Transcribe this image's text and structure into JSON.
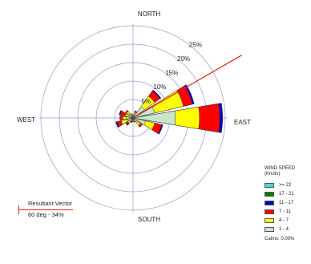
{
  "chart_data": {
    "type": "wind-rose",
    "directions": [
      "N",
      "NNE",
      "NE",
      "ENE",
      "E",
      "ESE",
      "SE",
      "SSE",
      "S",
      "SSW",
      "SW",
      "WSW",
      "W",
      "WNW",
      "NW",
      "NNW"
    ],
    "direction_degrees": [
      0,
      22.5,
      45,
      67.5,
      90,
      112.5,
      135,
      157.5,
      180,
      202.5,
      225,
      247.5,
      270,
      292.5,
      315,
      337.5
    ],
    "compass_labels": {
      "north": "NORTH",
      "east": "EAST",
      "south": "SOUTH",
      "west": "WEST"
    },
    "ring_percent": [
      5,
      10,
      15,
      20,
      25
    ],
    "ring_labels": [
      "5%",
      "10%",
      "15%",
      "20%",
      "25%"
    ],
    "speed_bins": [
      {
        "label": "1 - 4",
        "color": "#c8e6c9"
      },
      {
        "label": "4 - 7",
        "color": "#ffff00"
      },
      {
        "label": "7 - 11",
        "color": "#ff0000"
      },
      {
        "label": "11 - 17",
        "color": "#0000cc"
      },
      {
        "label": "17 - 21",
        "color": "#008000"
      },
      {
        "label": ">= 22",
        "color": "#40e0d0"
      }
    ],
    "frequency_percent_by_direction": [
      [
        0.4,
        0.2,
        0.1,
        0.0,
        0.0,
        0.0
      ],
      [
        1.0,
        0.6,
        0.4,
        0.0,
        0.0,
        0.0
      ],
      [
        3.8,
        3.4,
        1.8,
        0.3,
        0.0,
        0.0
      ],
      [
        6.0,
        8.0,
        2.5,
        0.5,
        0.0,
        0.0
      ],
      [
        11.5,
        6.5,
        5.5,
        0.8,
        0.0,
        0.0
      ],
      [
        3.5,
        2.5,
        2.0,
        0.3,
        0.0,
        0.0
      ],
      [
        1.5,
        1.0,
        0.6,
        0.0,
        0.0,
        0.0
      ],
      [
        0.6,
        0.4,
        0.2,
        0.0,
        0.0,
        0.0
      ],
      [
        0.5,
        0.3,
        0.2,
        0.0,
        0.0,
        0.0
      ],
      [
        0.5,
        0.4,
        0.3,
        0.1,
        0.0,
        0.0
      ],
      [
        1.2,
        0.5,
        0.6,
        0.2,
        0.0,
        0.0
      ],
      [
        1.8,
        1.5,
        1.2,
        0.3,
        0.0,
        0.0
      ],
      [
        1.8,
        1.0,
        0.7,
        0.1,
        0.0,
        0.0
      ],
      [
        1.0,
        1.2,
        1.4,
        0.3,
        0.0,
        0.0
      ],
      [
        1.5,
        0.7,
        0.4,
        0.0,
        0.0,
        0.0
      ],
      [
        0.6,
        0.4,
        0.2,
        0.0,
        0.0,
        0.0
      ]
    ],
    "resultant_vector": {
      "direction_deg": 60,
      "percent": 34
    }
  },
  "legend": {
    "title_line1": "WIND SPEED",
    "title_line2": "(Knots)",
    "items": [
      {
        "label": ">= 22",
        "color": "#40e0d0"
      },
      {
        "label": "17 - 21",
        "color": "#008000"
      },
      {
        "label": "11 - 17",
        "color": "#0000cc"
      },
      {
        "label": "7 - 11",
        "color": "#ff0000"
      },
      {
        "label": "4 - 7",
        "color": "#ffff00"
      },
      {
        "label": "1 - 4",
        "color": "#c8e6c9"
      }
    ],
    "calms": "Calms: 0.00%"
  },
  "resultant": {
    "title": "Resultant Vector",
    "value": "60 deg - 34%",
    "color": "#e0231b"
  }
}
